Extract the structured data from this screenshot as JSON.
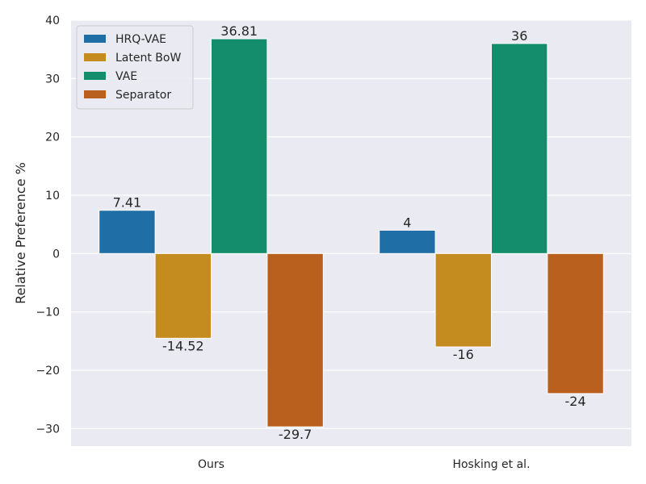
{
  "chart_data": {
    "type": "bar",
    "categories": [
      "Ours",
      "Hosking et al."
    ],
    "series": [
      {
        "name": "HRQ-VAE",
        "values": [
          7.41,
          4
        ],
        "color": "#1f6fa6",
        "labels": [
          "7.41",
          "4"
        ]
      },
      {
        "name": "Latent BoW",
        "values": [
          -14.52,
          -16
        ],
        "color": "#c48b1e",
        "labels": [
          "-14.52",
          "-16"
        ]
      },
      {
        "name": "VAE",
        "values": [
          36.81,
          36
        ],
        "color": "#138d6b",
        "labels": [
          "36.81",
          "36"
        ]
      },
      {
        "name": "Separator",
        "values": [
          -29.7,
          -24
        ],
        "color": "#b9601e",
        "labels": [
          "-29.7",
          "-24"
        ]
      }
    ],
    "xlabel": "",
    "ylabel": "Relative Preference %",
    "ylim": [
      -33,
      40
    ],
    "yticks": [
      -30,
      -20,
      -10,
      0,
      10,
      20,
      30,
      40
    ],
    "ytick_labels": [
      "−30",
      "−20",
      "−10",
      "0",
      "10",
      "20",
      "30",
      "40"
    ],
    "grid": true,
    "background": "#eaeaf2",
    "legend_position": "top-left"
  }
}
